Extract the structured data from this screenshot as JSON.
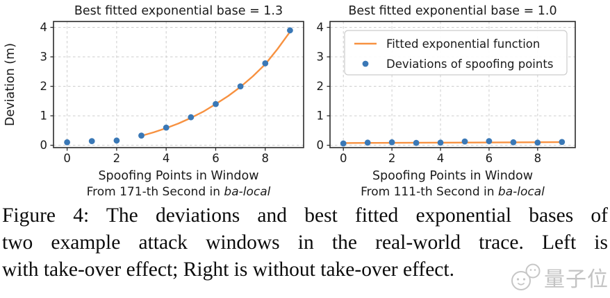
{
  "figure": {
    "caption_lines": [
      "Figure 4: The deviations and best fitted exponential bases of",
      "two example attack windows in the real-world trace. Left is",
      "with take-over effect; Right is without take-over effect."
    ]
  },
  "watermark": {
    "text": "量子位"
  },
  "colors": {
    "dots": "#3a78b6",
    "fit": "#f79140",
    "grid": "#cdcdcd",
    "spine": "#2b2b2b",
    "text": "#1a1a1a",
    "legend_border": "#cccccc",
    "watermark": "#c3c3c3"
  },
  "legend": {
    "items": [
      {
        "label": "Fitted exponential function",
        "type": "line"
      },
      {
        "label": "Deviations of spoofing points",
        "type": "dot"
      }
    ]
  },
  "chart_data": [
    {
      "type": "scatter",
      "title": "Best fitted exponential base = 1.3",
      "xlabel": "Spoofing Points in Window",
      "xlabel2_prefix": "From 171-th Second in ",
      "xlabel2_italic": "ba-local",
      "ylabel": "Deviation (m)",
      "xlim": [
        -0.55,
        9.55
      ],
      "ylim": [
        -0.08,
        4.2
      ],
      "xticks": [
        0,
        2,
        4,
        6,
        8
      ],
      "yticks": [
        0,
        1,
        2,
        3,
        4
      ],
      "grid": true,
      "points": [
        [
          0,
          0.1
        ],
        [
          1,
          0.14
        ],
        [
          2,
          0.16
        ],
        [
          3,
          0.33
        ],
        [
          4,
          0.6
        ],
        [
          5,
          0.95
        ],
        [
          6,
          1.4
        ],
        [
          7,
          2.0
        ],
        [
          8,
          2.78
        ],
        [
          9,
          3.9
        ]
      ],
      "fit_curve": [
        [
          3,
          0.32
        ],
        [
          3.5,
          0.44
        ],
        [
          4,
          0.58
        ],
        [
          4.5,
          0.74
        ],
        [
          5,
          0.93
        ],
        [
          5.5,
          1.14
        ],
        [
          6,
          1.4
        ],
        [
          6.5,
          1.67
        ],
        [
          7,
          1.98
        ],
        [
          7.5,
          2.34
        ],
        [
          8,
          2.75
        ],
        [
          8.5,
          3.27
        ],
        [
          9,
          3.85
        ]
      ],
      "show_ylabel": true,
      "show_legend": false
    },
    {
      "type": "scatter",
      "title": "Best fitted exponential base = 1.0",
      "xlabel": "Spoofing Points in Window",
      "xlabel2_prefix": "From 111-th Second in ",
      "xlabel2_italic": "ba-local",
      "ylabel": "",
      "xlim": [
        -0.55,
        9.55
      ],
      "ylim": [
        -0.08,
        4.2
      ],
      "xticks": [
        0,
        2,
        4,
        6,
        8
      ],
      "yticks": [
        0,
        1,
        2,
        3,
        4
      ],
      "grid": true,
      "points": [
        [
          0,
          0.06
        ],
        [
          1,
          0.09
        ],
        [
          2,
          0.1
        ],
        [
          3,
          0.08
        ],
        [
          4,
          0.09
        ],
        [
          5,
          0.13
        ],
        [
          6,
          0.14
        ],
        [
          7,
          0.1
        ],
        [
          8,
          0.09
        ],
        [
          9,
          0.11
        ]
      ],
      "fit_curve": [
        [
          0,
          0.075
        ],
        [
          4.5,
          0.09
        ],
        [
          9,
          0.105
        ]
      ],
      "show_ylabel": false,
      "show_legend": true
    }
  ]
}
